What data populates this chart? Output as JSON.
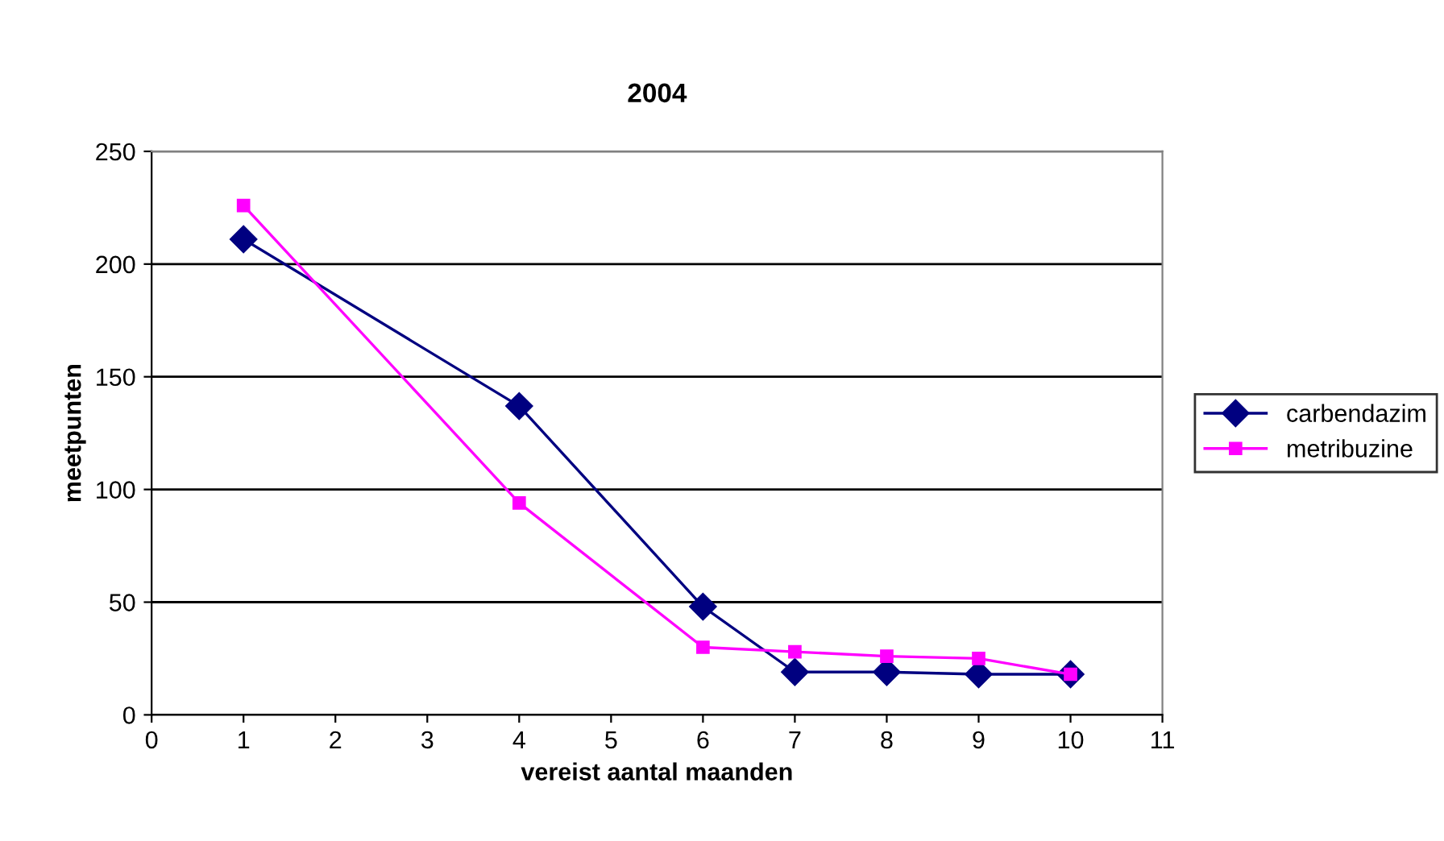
{
  "chart_data": {
    "type": "line",
    "title": "2004",
    "xlabel": "vereist aantal maanden",
    "ylabel": "meetpunten",
    "x": [
      1,
      4,
      6,
      7,
      8,
      9,
      10
    ],
    "series": [
      {
        "name": "carbendazim",
        "color": "#000080",
        "marker": "diamond",
        "values": [
          211,
          137,
          48,
          19,
          19,
          18,
          18
        ]
      },
      {
        "name": "metribuzine",
        "color": "#ff00ff",
        "marker": "square",
        "values": [
          226,
          94,
          30,
          28,
          26,
          25,
          18
        ]
      }
    ],
    "xlim": [
      0,
      11
    ],
    "xticks": [
      0,
      1,
      2,
      3,
      4,
      5,
      6,
      7,
      8,
      9,
      10,
      11
    ],
    "ylim": [
      0,
      250
    ],
    "yticks": [
      0,
      50,
      100,
      150,
      200,
      250
    ],
    "grid": "y",
    "legend": "right",
    "line_style": "solid"
  }
}
